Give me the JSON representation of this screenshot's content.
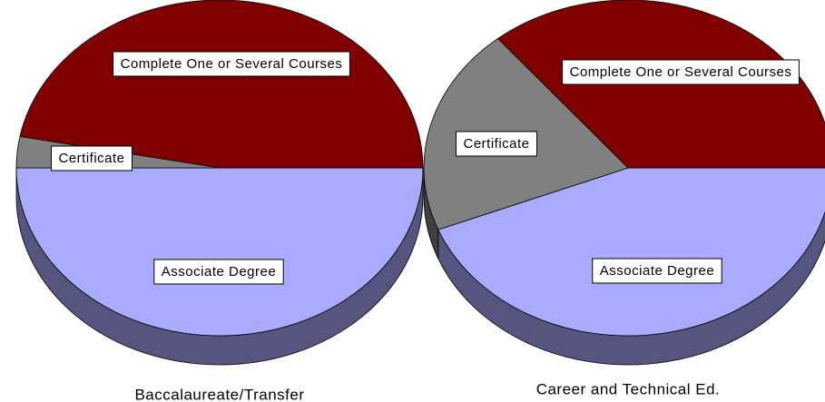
{
  "chart_data": [
    {
      "type": "pie3d",
      "title": "Baccalaureate/Transfer",
      "categories": [
        "Associate Degree",
        "Certificate",
        "Complete One or Several Courses"
      ],
      "values": [
        50,
        3,
        47
      ],
      "colors": [
        "#aaaaff",
        "#808080",
        "#800000"
      ]
    },
    {
      "type": "pie3d",
      "title": "Career and Technical Ed.",
      "categories": [
        "Associate Degree",
        "Certificate",
        "Complete One or Several Courses"
      ],
      "values": [
        44,
        20,
        36
      ],
      "colors": [
        "#aaaaff",
        "#808080",
        "#800000"
      ]
    }
  ]
}
